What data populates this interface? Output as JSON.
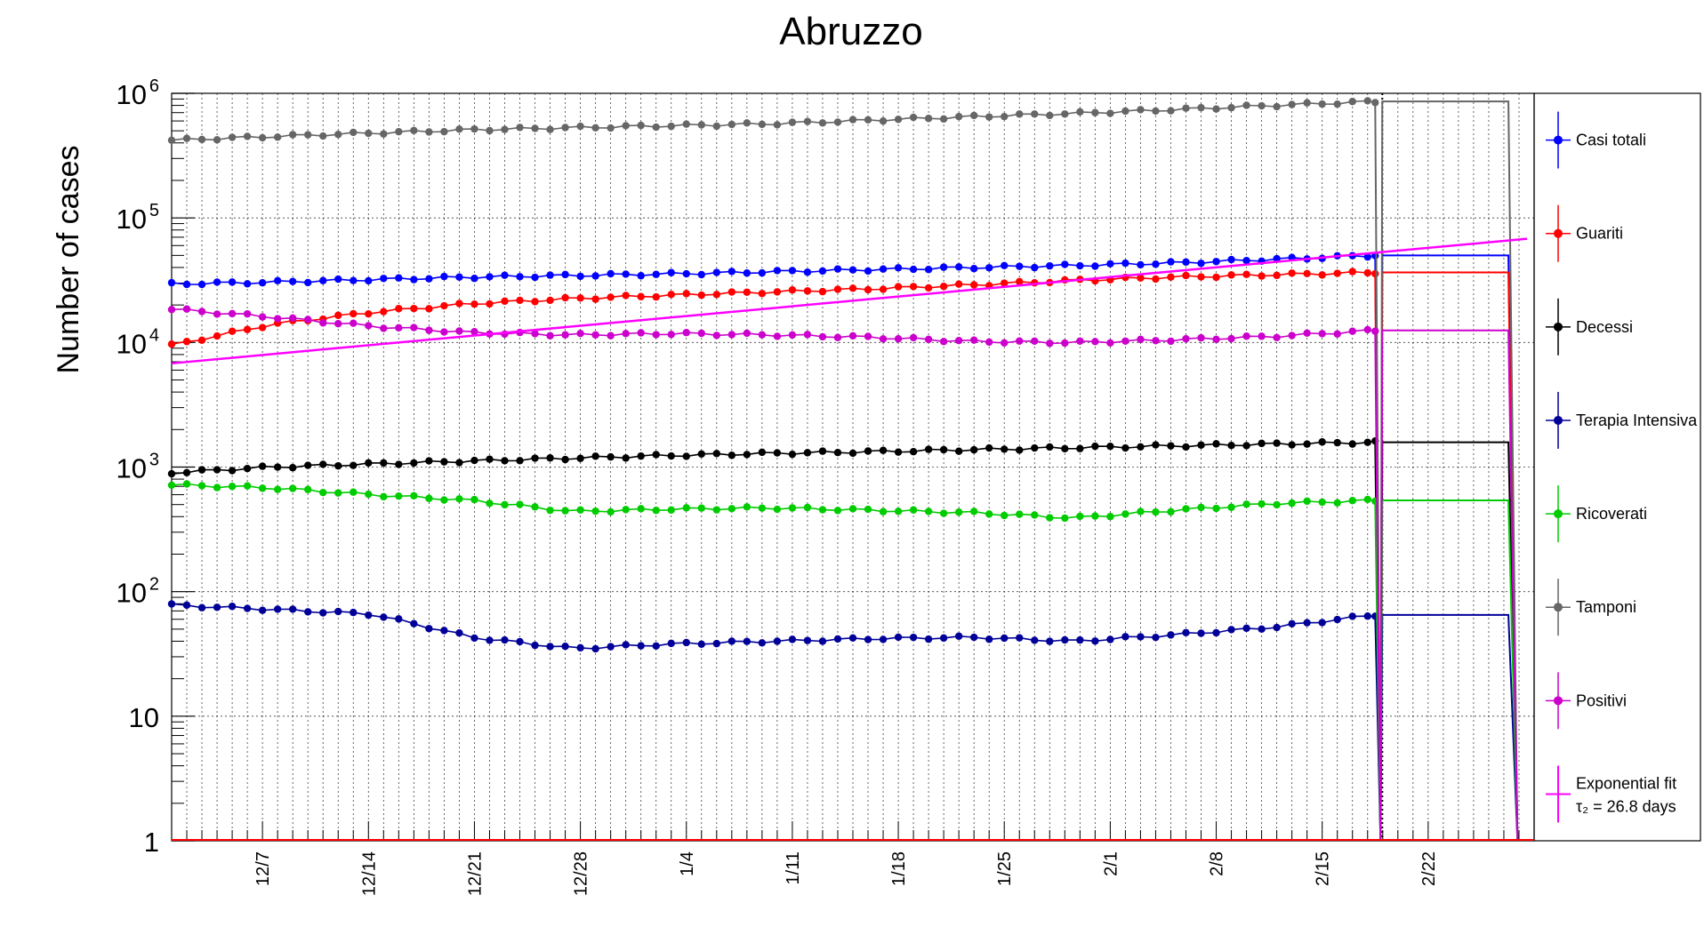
{
  "chart_data": {
    "type": "line",
    "title": "Abruzzo",
    "ylabel": "Number of cases",
    "xlabel": "",
    "yscale": "log",
    "ylim": [
      1,
      1000000
    ],
    "y_ticks": [
      {
        "value": 1,
        "base": "1",
        "exp": ""
      },
      {
        "value": 10,
        "base": "10",
        "exp": ""
      },
      {
        "value": 100,
        "base": "10",
        "exp": "2"
      },
      {
        "value": 1000,
        "base": "10",
        "exp": "3"
      },
      {
        "value": 10000,
        "base": "10",
        "exp": "4"
      },
      {
        "value": 100000,
        "base": "10",
        "exp": "5"
      },
      {
        "value": 1000000,
        "base": "10",
        "exp": "6"
      }
    ],
    "x_ticks": [
      "12/7",
      "12/14",
      "12/21",
      "12/28",
      "1/4",
      "1/11",
      "1/18",
      "1/25",
      "2/1",
      "2/8",
      "2/15",
      "2/22"
    ],
    "x_range": [
      "12/1",
      "2/28"
    ],
    "grid": true,
    "legend_position": "right",
    "series": [
      {
        "name": "Casi totali",
        "color": "#0000ff",
        "values": [
          29500,
          30500,
          32000,
          33500,
          34500,
          35500,
          37000,
          38500,
          40000,
          41500,
          43500,
          46500,
          50000
        ]
      },
      {
        "name": "Guariti",
        "color": "#ff0000",
        "values": [
          9500,
          14000,
          17500,
          20500,
          22500,
          24000,
          25500,
          27000,
          29000,
          31500,
          33500,
          35000,
          36500
        ]
      },
      {
        "name": "Decessi",
        "color": "#000000",
        "values": [
          900,
          1000,
          1060,
          1120,
          1180,
          1240,
          1290,
          1330,
          1380,
          1430,
          1480,
          1530,
          1580
        ]
      },
      {
        "name": "Terapia Intensiva",
        "color": "#000099",
        "values": [
          78,
          72,
          66,
          43,
          35,
          38,
          40,
          42,
          43,
          40,
          45,
          52,
          65
        ]
      },
      {
        "name": "Ricoverati",
        "color": "#00cc00",
        "values": [
          720,
          680,
          600,
          540,
          440,
          460,
          470,
          450,
          430,
          390,
          450,
          510,
          540
        ]
      },
      {
        "name": "Tamponi",
        "color": "#666666",
        "values": [
          420000,
          450000,
          480000,
          510000,
          530000,
          550000,
          570000,
          610000,
          650000,
          690000,
          740000,
          800000,
          860000
        ]
      },
      {
        "name": "Positivi",
        "color": "#cc00cc",
        "values": [
          18500,
          16000,
          13500,
          12000,
          11500,
          11800,
          11500,
          11000,
          10200,
          10000,
          10500,
          11200,
          12500
        ]
      }
    ],
    "fit": {
      "name": "Exponential fit",
      "label_line2": "τ₂ = 26.8 days",
      "color": "#ff00ff",
      "start_value": 6800,
      "end_value": 68000
    }
  }
}
